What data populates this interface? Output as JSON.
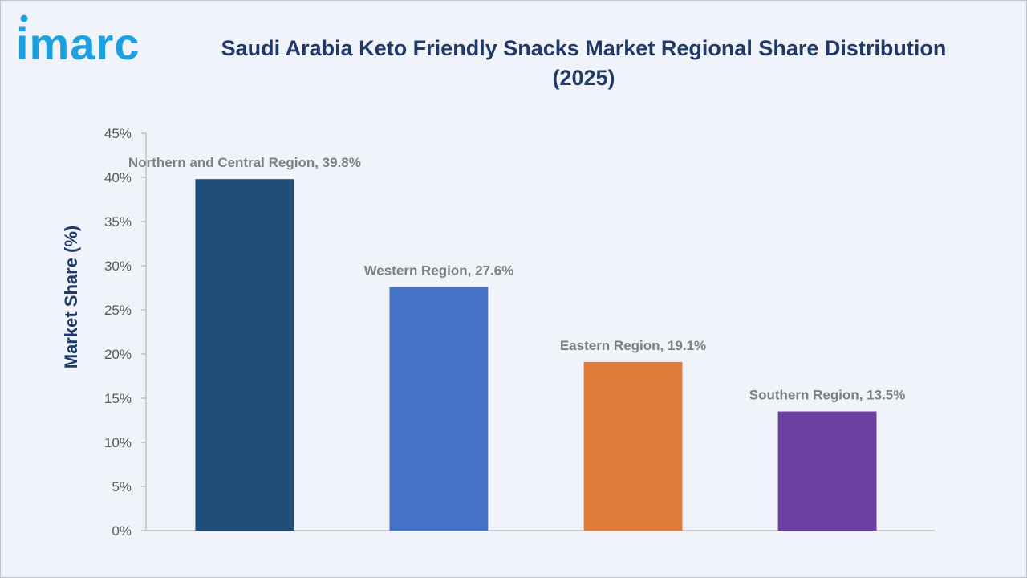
{
  "brand": {
    "logo_text": "imarc",
    "logo_color": "#1ba0e2"
  },
  "chart_data": {
    "type": "bar",
    "title": "Saudi Arabia Keto Friendly Snacks Market Regional Share Distribution (2025)",
    "xlabel": "",
    "ylabel": "Market Share (%)",
    "ylim": [
      0,
      45
    ],
    "yticks": [
      "0%",
      "5%",
      "10%",
      "15%",
      "20%",
      "25%",
      "30%",
      "35%",
      "40%",
      "45%"
    ],
    "grid": false,
    "categories": [
      "Northern and Central Region",
      "Western Region",
      "Eastern Region",
      "Southern Region"
    ],
    "values": [
      39.8,
      27.6,
      19.1,
      13.5
    ],
    "data_labels": [
      "Northern and Central Region, 39.8%",
      "Western Region, 27.6%",
      "Eastern Region, 19.1%",
      "Southern Region, 13.5%"
    ],
    "colors": [
      "#1f4e79",
      "#4472c4",
      "#e07b39",
      "#6b3fa0"
    ]
  }
}
